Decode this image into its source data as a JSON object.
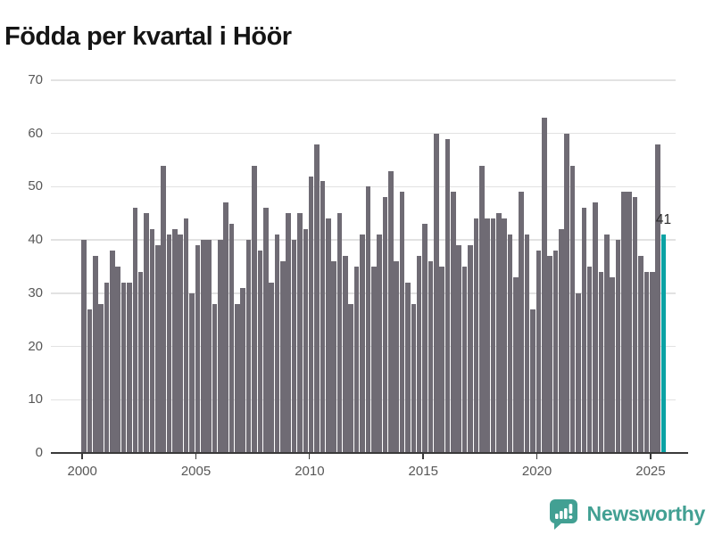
{
  "title": "Födda per kvartal i Höör",
  "footer": {
    "brand": "Newsworthy",
    "logo_icon": "chart-speech-bubble-icon"
  },
  "colors": {
    "bar": "#6f6b74",
    "highlight": "#0ba2a4",
    "brand_teal": "#42a093",
    "axis_text": "#575757",
    "grid": "#e2e2e2",
    "baseline": "#3a3a3a"
  },
  "chart_data": {
    "type": "bar",
    "title": "Födda per kvartal i Höör",
    "x_start_quarter": "2000 Q1",
    "x_end_quarter": "2025 Q3",
    "x_tick_labels": [
      "2000",
      "2005",
      "2010",
      "2015",
      "2020",
      "2025"
    ],
    "x_tick_quarter_indices": [
      0,
      20,
      40,
      60,
      80,
      100
    ],
    "y_ticks": [
      0,
      10,
      20,
      30,
      40,
      50,
      60,
      70
    ],
    "ylim": [
      0,
      70
    ],
    "grid": "horizontal",
    "legend": "none",
    "values": [
      40,
      27,
      37,
      28,
      32,
      38,
      35,
      32,
      32,
      46,
      34,
      45,
      42,
      39,
      54,
      41,
      42,
      41,
      44,
      30,
      39,
      40,
      40,
      28,
      40,
      47,
      43,
      28,
      31,
      40,
      54,
      38,
      46,
      32,
      41,
      36,
      45,
      40,
      45,
      42,
      52,
      58,
      51,
      44,
      36,
      45,
      37,
      28,
      35,
      41,
      50,
      35,
      41,
      48,
      53,
      36,
      49,
      32,
      28,
      37,
      43,
      36,
      60,
      35,
      59,
      49,
      39,
      35,
      39,
      44,
      54,
      44,
      44,
      45,
      44,
      41,
      33,
      49,
      41,
      27,
      38,
      63,
      37,
      38,
      42,
      60,
      54,
      30,
      46,
      35,
      47,
      34,
      41,
      33,
      40,
      49,
      49,
      48,
      37,
      34,
      34,
      58,
      41
    ],
    "highlight": {
      "index": 102,
      "quarter": "2025 Q3",
      "value": 41,
      "label": "41"
    }
  }
}
